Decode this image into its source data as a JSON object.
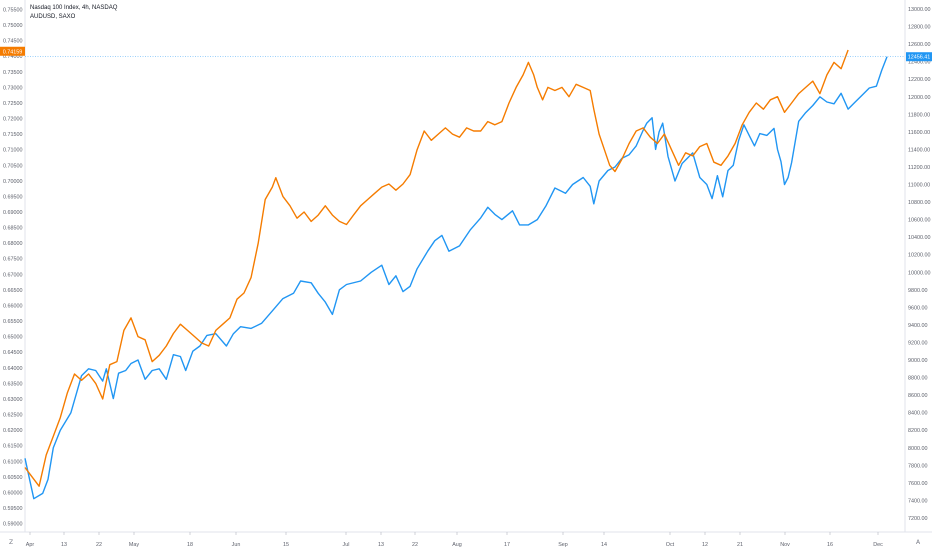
{
  "chart_data": {
    "type": "line",
    "legend": {
      "main_series": "Nasdaq 100 Index, 4h, NASDAQ",
      "compare_series": "AUDUSD, SAXO"
    },
    "left_axis": {
      "ticks": [
        "0.75500",
        "0.75000",
        "0.74500",
        "0.74000",
        "0.73500",
        "0.73000",
        "0.72500",
        "0.72000",
        "0.71500",
        "0.71000",
        "0.70500",
        "0.70000",
        "0.69500",
        "0.69000",
        "0.68500",
        "0.68000",
        "0.67500",
        "0.67000",
        "0.66500",
        "0.66000",
        "0.65500",
        "0.65000",
        "0.64500",
        "0.64000",
        "0.63500",
        "0.63000",
        "0.62500",
        "0.62000",
        "0.61500",
        "0.61000",
        "0.60500",
        "0.60000",
        "0.59500",
        "0.59000"
      ],
      "range": [
        0.5873,
        0.7574
      ],
      "last_value_label": "0.74159"
    },
    "right_axis": {
      "ticks": [
        "13000.00",
        "12800.00",
        "12600.00",
        "12400.00",
        "12200.00",
        "12000.00",
        "11800.00",
        "11600.00",
        "11400.00",
        "11200.00",
        "11000.00",
        "10800.00",
        "10600.00",
        "10400.00",
        "10200.00",
        "10000.00",
        "9800.00",
        "9600.00",
        "9400.00",
        "9200.00",
        "9000.00",
        "8800.00",
        "8600.00",
        "8400.00",
        "8200.00",
        "8000.00",
        "7800.00",
        "7600.00",
        "7400.00",
        "7200.00"
      ],
      "range": [
        7040,
        13080
      ],
      "last_value_label": "12456.41"
    },
    "x_axis": {
      "labels": [
        "Apr",
        "13",
        "22",
        "May",
        "18",
        "Jun",
        "15",
        "Jul",
        "13",
        "22",
        "Aug",
        "17",
        "Sep",
        "14",
        "Oct",
        "12",
        "21",
        "Nov",
        "16",
        "Dec"
      ],
      "n_bars": 430
    },
    "series": [
      {
        "name": "Nasdaq 100 Index, 4h, NASDAQ",
        "axis": "right",
        "color": "#2196f3",
        "points": [
          [
            0,
            7880
          ],
          [
            5,
            7420
          ],
          [
            10,
            7480
          ],
          [
            13,
            7640
          ],
          [
            16,
            8000
          ],
          [
            20,
            8200
          ],
          [
            26,
            8400
          ],
          [
            32,
            8820
          ],
          [
            36,
            8900
          ],
          [
            40,
            8880
          ],
          [
            44,
            8760
          ],
          [
            46,
            8900
          ],
          [
            50,
            8560
          ],
          [
            53,
            8850
          ],
          [
            57,
            8880
          ],
          [
            60,
            8960
          ],
          [
            64,
            9000
          ],
          [
            68,
            8780
          ],
          [
            72,
            8880
          ],
          [
            76,
            8900
          ],
          [
            80,
            8780
          ],
          [
            84,
            9060
          ],
          [
            88,
            9040
          ],
          [
            91,
            8880
          ],
          [
            95,
            9100
          ],
          [
            99,
            9160
          ],
          [
            103,
            9280
          ],
          [
            108,
            9300
          ],
          [
            114,
            9160
          ],
          [
            118,
            9300
          ],
          [
            122,
            9380
          ],
          [
            128,
            9360
          ],
          [
            134,
            9420
          ],
          [
            140,
            9560
          ],
          [
            146,
            9700
          ],
          [
            152,
            9760
          ],
          [
            156,
            9900
          ],
          [
            162,
            9880
          ],
          [
            166,
            9760
          ],
          [
            170,
            9660
          ],
          [
            174,
            9520
          ],
          [
            178,
            9800
          ],
          [
            182,
            9860
          ],
          [
            190,
            9900
          ],
          [
            196,
            10000
          ],
          [
            202,
            10080
          ],
          [
            206,
            9860
          ],
          [
            210,
            9960
          ],
          [
            214,
            9780
          ],
          [
            218,
            9840
          ],
          [
            222,
            10040
          ],
          [
            228,
            10240
          ],
          [
            232,
            10360
          ],
          [
            236,
            10420
          ],
          [
            240,
            10240
          ],
          [
            246,
            10300
          ],
          [
            252,
            10480
          ],
          [
            258,
            10620
          ],
          [
            262,
            10740
          ],
          [
            266,
            10660
          ],
          [
            270,
            10600
          ],
          [
            276,
            10700
          ],
          [
            280,
            10540
          ],
          [
            285,
            10540
          ],
          [
            290,
            10600
          ],
          [
            295,
            10760
          ],
          [
            300,
            10960
          ],
          [
            306,
            10900
          ],
          [
            310,
            11000
          ],
          [
            316,
            11080
          ],
          [
            320,
            10980
          ],
          [
            322,
            10780
          ],
          [
            325,
            11040
          ],
          [
            330,
            11160
          ],
          [
            334,
            11200
          ],
          [
            338,
            11300
          ],
          [
            342,
            11340
          ],
          [
            346,
            11440
          ],
          [
            350,
            11620
          ],
          [
            352,
            11700
          ],
          [
            355,
            11760
          ],
          [
            357,
            11400
          ],
          [
            359,
            11600
          ],
          [
            361,
            11700
          ],
          [
            364,
            11320
          ],
          [
            366,
            11180
          ],
          [
            368,
            11040
          ],
          [
            372,
            11240
          ],
          [
            378,
            11360
          ],
          [
            382,
            11080
          ],
          [
            386,
            11000
          ],
          [
            389,
            10840
          ],
          [
            392,
            11100
          ],
          [
            395,
            10860
          ],
          [
            398,
            11160
          ],
          [
            401,
            11220
          ],
          [
            404,
            11500
          ],
          [
            407,
            11680
          ],
          [
            410,
            11560
          ],
          [
            413,
            11440
          ],
          [
            416,
            11580
          ],
          [
            420,
            11560
          ],
          [
            424,
            11640
          ],
          [
            426,
            11400
          ],
          [
            428,
            11260
          ],
          [
            430,
            11000
          ],
          [
            432,
            11080
          ],
          [
            434,
            11250
          ],
          [
            438,
            11720
          ],
          [
            442,
            11820
          ],
          [
            446,
            11900
          ],
          [
            450,
            12000
          ],
          [
            454,
            11940
          ],
          [
            458,
            11920
          ],
          [
            462,
            12040
          ],
          [
            466,
            11860
          ],
          [
            470,
            11940
          ],
          [
            474,
            12020
          ],
          [
            478,
            12100
          ],
          [
            482,
            12120
          ],
          [
            485,
            12300
          ],
          [
            488,
            12456
          ]
        ]
      },
      {
        "name": "AUDUSD, SAXO",
        "axis": "left",
        "color": "#f57c00",
        "points": [
          [
            0,
            0.608
          ],
          [
            4,
            0.605
          ],
          [
            8,
            0.602
          ],
          [
            12,
            0.612
          ],
          [
            16,
            0.618
          ],
          [
            20,
            0.624
          ],
          [
            24,
            0.632
          ],
          [
            28,
            0.638
          ],
          [
            32,
            0.636
          ],
          [
            36,
            0.638
          ],
          [
            40,
            0.635
          ],
          [
            44,
            0.63
          ],
          [
            48,
            0.641
          ],
          [
            52,
            0.642
          ],
          [
            56,
            0.652
          ],
          [
            60,
            0.656
          ],
          [
            64,
            0.65
          ],
          [
            68,
            0.649
          ],
          [
            72,
            0.642
          ],
          [
            76,
            0.644
          ],
          [
            80,
            0.647
          ],
          [
            84,
            0.651
          ],
          [
            88,
            0.654
          ],
          [
            92,
            0.652
          ],
          [
            96,
            0.65
          ],
          [
            100,
            0.648
          ],
          [
            104,
            0.647
          ],
          [
            108,
            0.652
          ],
          [
            112,
            0.654
          ],
          [
            116,
            0.656
          ],
          [
            120,
            0.662
          ],
          [
            124,
            0.664
          ],
          [
            128,
            0.669
          ],
          [
            132,
            0.68
          ],
          [
            136,
            0.694
          ],
          [
            140,
            0.698
          ],
          [
            142,
            0.701
          ],
          [
            146,
            0.695
          ],
          [
            150,
            0.692
          ],
          [
            154,
            0.688
          ],
          [
            158,
            0.69
          ],
          [
            162,
            0.687
          ],
          [
            166,
            0.689
          ],
          [
            170,
            0.692
          ],
          [
            174,
            0.689
          ],
          [
            178,
            0.687
          ],
          [
            182,
            0.686
          ],
          [
            186,
            0.689
          ],
          [
            190,
            0.692
          ],
          [
            194,
            0.694
          ],
          [
            198,
            0.696
          ],
          [
            202,
            0.698
          ],
          [
            206,
            0.699
          ],
          [
            210,
            0.697
          ],
          [
            214,
            0.699
          ],
          [
            218,
            0.702
          ],
          [
            222,
            0.71
          ],
          [
            226,
            0.716
          ],
          [
            230,
            0.713
          ],
          [
            234,
            0.715
          ],
          [
            238,
            0.717
          ],
          [
            242,
            0.715
          ],
          [
            246,
            0.714
          ],
          [
            250,
            0.717
          ],
          [
            254,
            0.716
          ],
          [
            258,
            0.716
          ],
          [
            262,
            0.719
          ],
          [
            266,
            0.718
          ],
          [
            270,
            0.719
          ],
          [
            274,
            0.725
          ],
          [
            278,
            0.73
          ],
          [
            282,
            0.734
          ],
          [
            285,
            0.738
          ],
          [
            288,
            0.734
          ],
          [
            290,
            0.73
          ],
          [
            293,
            0.726
          ],
          [
            296,
            0.73
          ],
          [
            300,
            0.729
          ],
          [
            304,
            0.73
          ],
          [
            308,
            0.727
          ],
          [
            312,
            0.731
          ],
          [
            316,
            0.73
          ],
          [
            320,
            0.729
          ],
          [
            322,
            0.723
          ],
          [
            325,
            0.715
          ],
          [
            328,
            0.71
          ],
          [
            331,
            0.705
          ],
          [
            334,
            0.703
          ],
          [
            338,
            0.707
          ],
          [
            342,
            0.712
          ],
          [
            346,
            0.716
          ],
          [
            350,
            0.717
          ],
          [
            354,
            0.714
          ],
          [
            358,
            0.712
          ],
          [
            362,
            0.715
          ],
          [
            366,
            0.71
          ],
          [
            370,
            0.705
          ],
          [
            374,
            0.709
          ],
          [
            378,
            0.708
          ],
          [
            382,
            0.711
          ],
          [
            386,
            0.712
          ],
          [
            390,
            0.706
          ],
          [
            394,
            0.705
          ],
          [
            398,
            0.708
          ],
          [
            402,
            0.712
          ],
          [
            406,
            0.718
          ],
          [
            410,
            0.722
          ],
          [
            414,
            0.725
          ],
          [
            418,
            0.723
          ],
          [
            422,
            0.726
          ],
          [
            426,
            0.727
          ],
          [
            430,
            0.722
          ],
          [
            434,
            0.725
          ],
          [
            438,
            0.728
          ],
          [
            442,
            0.73
          ],
          [
            446,
            0.732
          ],
          [
            450,
            0.728
          ],
          [
            454,
            0.734
          ],
          [
            458,
            0.738
          ],
          [
            462,
            0.736
          ],
          [
            466,
            0.742
          ]
        ]
      }
    ],
    "colors": {
      "up_series": "#2196f3",
      "compare_series": "#f57c00"
    }
  },
  "ui": {
    "bottom_left_corner": "Z",
    "bottom_right_corner": "A"
  }
}
